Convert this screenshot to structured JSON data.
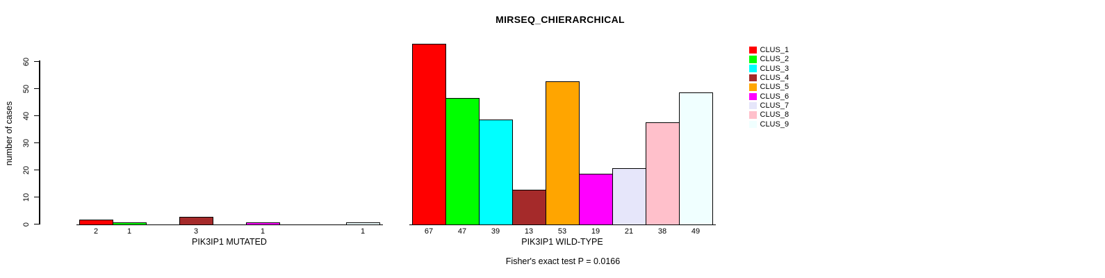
{
  "title": "MIRSEQ_CHIERARCHICAL",
  "subtitle": "Fisher's exact test P = 0.0166",
  "chart_data": {
    "type": "bar",
    "title": "MIRSEQ_CHIERARCHICAL",
    "ylabel": "number of cases",
    "xlabel": "",
    "yticks": [
      0,
      10,
      20,
      30,
      40,
      50,
      60
    ],
    "ylim": [
      0,
      67
    ],
    "grid": false,
    "legend_position": "top-right",
    "clusters": [
      "CLUS_1",
      "CLUS_2",
      "CLUS_3",
      "CLUS_4",
      "CLUS_5",
      "CLUS_6",
      "CLUS_7",
      "CLUS_8",
      "CLUS_9"
    ],
    "colors": [
      "#ff0000",
      "#00ff00",
      "#00ffff",
      "#a52a2a",
      "#ffa500",
      "#ff00ff",
      "#e6e6fa",
      "#ffc0cb",
      "#f0ffff"
    ],
    "groups": [
      {
        "label": "PIK3IP1 MUTATED",
        "values": [
          2,
          1,
          0,
          3,
          0,
          1,
          0,
          0,
          1
        ]
      },
      {
        "label": "PIK3IP1 WILD-TYPE",
        "values": [
          67,
          47,
          39,
          13,
          53,
          19,
          21,
          38,
          49
        ]
      }
    ],
    "annotation": "Fisher's exact test P = 0.0166"
  }
}
